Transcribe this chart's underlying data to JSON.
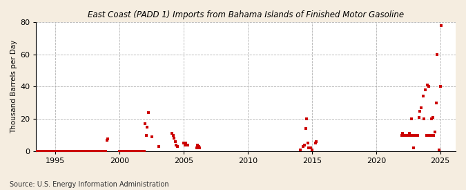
{
  "title": "East Coast (PADD 1) Imports from Bahama Islands of Finished Motor Gasoline",
  "ylabel": "Thousand Barrels per Day",
  "source": "Source: U.S. Energy Information Administration",
  "bg_color": "#f5ede0",
  "plot_bg_color": "#ffffff",
  "marker_color": "#cc0000",
  "marker_size": 5,
  "xlim": [
    1993.5,
    2026.2
  ],
  "ylim": [
    0,
    80
  ],
  "yticks": [
    0,
    20,
    40,
    60,
    80
  ],
  "xticks": [
    1995,
    2000,
    2005,
    2010,
    2015,
    2020,
    2025
  ],
  "data": [
    [
      1993.583,
      0
    ],
    [
      1993.667,
      0
    ],
    [
      1993.75,
      0
    ],
    [
      1993.833,
      0
    ],
    [
      1993.917,
      0
    ],
    [
      1994.0,
      0
    ],
    [
      1994.083,
      0
    ],
    [
      1994.167,
      0
    ],
    [
      1994.25,
      0
    ],
    [
      1994.333,
      0
    ],
    [
      1994.417,
      0
    ],
    [
      1994.5,
      0
    ],
    [
      1994.583,
      0
    ],
    [
      1994.667,
      0
    ],
    [
      1994.75,
      0
    ],
    [
      1994.833,
      0
    ],
    [
      1994.917,
      0
    ],
    [
      1995.0,
      0
    ],
    [
      1995.083,
      0
    ],
    [
      1995.167,
      0
    ],
    [
      1995.25,
      0
    ],
    [
      1995.333,
      0
    ],
    [
      1995.417,
      0
    ],
    [
      1995.5,
      0
    ],
    [
      1995.583,
      0
    ],
    [
      1995.667,
      0
    ],
    [
      1995.75,
      0
    ],
    [
      1995.833,
      0
    ],
    [
      1995.917,
      0
    ],
    [
      1996.0,
      0
    ],
    [
      1996.083,
      0
    ],
    [
      1996.167,
      0
    ],
    [
      1996.25,
      0
    ],
    [
      1996.333,
      0
    ],
    [
      1996.417,
      0
    ],
    [
      1996.5,
      0
    ],
    [
      1996.583,
      0
    ],
    [
      1996.667,
      0
    ],
    [
      1996.75,
      0
    ],
    [
      1996.833,
      0
    ],
    [
      1996.917,
      0
    ],
    [
      1997.0,
      0
    ],
    [
      1997.083,
      0
    ],
    [
      1997.167,
      0
    ],
    [
      1997.25,
      0
    ],
    [
      1997.333,
      0
    ],
    [
      1997.417,
      0
    ],
    [
      1997.5,
      0
    ],
    [
      1997.583,
      0
    ],
    [
      1997.667,
      0
    ],
    [
      1997.75,
      0
    ],
    [
      1997.833,
      0
    ],
    [
      1997.917,
      0
    ],
    [
      1998.0,
      0
    ],
    [
      1998.083,
      0
    ],
    [
      1998.167,
      0
    ],
    [
      1998.25,
      0
    ],
    [
      1998.333,
      0
    ],
    [
      1998.417,
      0
    ],
    [
      1998.5,
      0
    ],
    [
      1998.583,
      0
    ],
    [
      1998.667,
      0
    ],
    [
      1998.75,
      0
    ],
    [
      1998.833,
      0
    ],
    [
      1998.917,
      0
    ],
    [
      1999.0,
      7
    ],
    [
      1999.083,
      7.5
    ],
    [
      2000.0,
      0
    ],
    [
      2000.083,
      0
    ],
    [
      2000.167,
      0
    ],
    [
      2000.25,
      0
    ],
    [
      2000.333,
      0
    ],
    [
      2000.417,
      0
    ],
    [
      2000.5,
      0
    ],
    [
      2000.583,
      0
    ],
    [
      2000.667,
      0
    ],
    [
      2000.75,
      0
    ],
    [
      2000.833,
      0
    ],
    [
      2000.917,
      0
    ],
    [
      2001.0,
      0
    ],
    [
      2001.083,
      0
    ],
    [
      2001.167,
      0
    ],
    [
      2001.25,
      0
    ],
    [
      2001.333,
      0
    ],
    [
      2001.417,
      0
    ],
    [
      2001.5,
      0
    ],
    [
      2001.583,
      0
    ],
    [
      2001.667,
      0
    ],
    [
      2001.75,
      0
    ],
    [
      2001.833,
      0
    ],
    [
      2001.917,
      0
    ],
    [
      2002.0,
      17
    ],
    [
      2002.083,
      10
    ],
    [
      2002.167,
      15
    ],
    [
      2002.25,
      24
    ],
    [
      2002.5,
      9
    ],
    [
      2003.083,
      3
    ],
    [
      2004.083,
      11
    ],
    [
      2004.167,
      10
    ],
    [
      2004.25,
      8
    ],
    [
      2004.333,
      6
    ],
    [
      2004.417,
      4
    ],
    [
      2004.5,
      3
    ],
    [
      2005.0,
      5
    ],
    [
      2005.083,
      4
    ],
    [
      2005.167,
      5
    ],
    [
      2005.25,
      4
    ],
    [
      2005.333,
      4
    ],
    [
      2006.0,
      2
    ],
    [
      2006.083,
      4
    ],
    [
      2006.167,
      3
    ],
    [
      2006.25,
      2
    ],
    [
      2014.083,
      1
    ],
    [
      2014.333,
      3
    ],
    [
      2014.417,
      4
    ],
    [
      2014.5,
      14
    ],
    [
      2014.583,
      20
    ],
    [
      2014.667,
      5
    ],
    [
      2014.75,
      2
    ],
    [
      2014.833,
      2
    ],
    [
      2014.917,
      2
    ],
    [
      2015.0,
      1
    ],
    [
      2015.25,
      5
    ],
    [
      2015.333,
      6
    ],
    [
      2022.0,
      10
    ],
    [
      2022.083,
      11
    ],
    [
      2022.167,
      10
    ],
    [
      2022.25,
      10
    ],
    [
      2022.333,
      10
    ],
    [
      2022.417,
      10
    ],
    [
      2022.5,
      10
    ],
    [
      2022.583,
      11
    ],
    [
      2022.667,
      10
    ],
    [
      2022.75,
      20
    ],
    [
      2022.833,
      10
    ],
    [
      2022.917,
      2
    ],
    [
      2023.0,
      10
    ],
    [
      2023.083,
      10
    ],
    [
      2023.167,
      10
    ],
    [
      2023.25,
      10
    ],
    [
      2023.333,
      21
    ],
    [
      2023.417,
      25
    ],
    [
      2023.5,
      27
    ],
    [
      2023.667,
      34
    ],
    [
      2023.75,
      20
    ],
    [
      2023.833,
      38
    ],
    [
      2023.917,
      10
    ],
    [
      2024.0,
      41
    ],
    [
      2024.083,
      40
    ],
    [
      2024.167,
      10
    ],
    [
      2024.25,
      10
    ],
    [
      2024.333,
      20
    ],
    [
      2024.417,
      21
    ],
    [
      2024.5,
      10
    ],
    [
      2024.583,
      12
    ],
    [
      2024.667,
      30
    ],
    [
      2024.75,
      60
    ],
    [
      2024.917,
      1
    ],
    [
      2025.0,
      40
    ],
    [
      2025.083,
      78
    ]
  ]
}
